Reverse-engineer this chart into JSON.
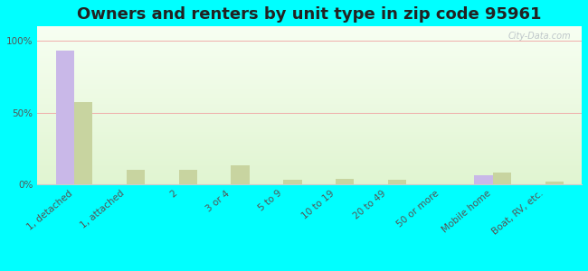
{
  "title": "Owners and renters by unit type in zip code 95961",
  "categories": [
    "1, detached",
    "1, attached",
    "2",
    "3 or 4",
    "5 to 9",
    "10 to 19",
    "20 to 49",
    "50 or more",
    "Mobile home",
    "Boat, RV, etc."
  ],
  "owner_values": [
    93,
    0,
    0,
    0,
    0,
    0,
    0,
    0,
    6,
    0
  ],
  "renter_values": [
    57,
    10,
    10,
    13,
    3,
    4,
    3,
    0,
    8,
    2
  ],
  "owner_color": "#c9b8e8",
  "renter_color": "#c8d4a0",
  "outer_bg": "#00ffff",
  "ylabel_ticks": [
    "0%",
    "50%",
    "100%"
  ],
  "ytick_vals": [
    0,
    50,
    100
  ],
  "ylim": [
    0,
    110
  ],
  "bar_width": 0.35,
  "title_fontsize": 13,
  "tick_fontsize": 7.5,
  "watermark": "City-Data.com"
}
